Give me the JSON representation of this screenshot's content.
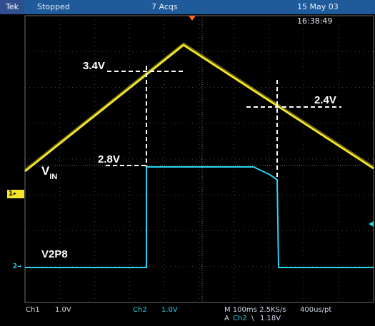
{
  "header": {
    "brand": "Tek",
    "run_state": "Stopped",
    "acquisitions": "7 Acqs",
    "timestamp": "15 May 03 16:38:49"
  },
  "channel_markers": {
    "ch1": "1",
    "ch2": "2"
  },
  "annotations": {
    "top_level": "3.4V",
    "mid_level": "2.4V",
    "output_level": "2.8V",
    "input_label_main": "V",
    "input_label_sub": "IN",
    "output_label": "V2P8"
  },
  "status_bar": {
    "ch1_label": "Ch1",
    "ch1_scale": "1.0V",
    "ch2_label": "Ch2",
    "ch2_scale": "1.0V",
    "timebase": "M 100ms 2.5KS/s",
    "record": "400us/pt",
    "trigger_prefix": "A",
    "trigger_source": "Ch2",
    "trigger_slope_symbol": "\\",
    "trigger_level": "1.18V"
  },
  "colors": {
    "ch1": "#f5e62b",
    "ch2": "#27d3f0",
    "grid": "#6e6e6e",
    "trigger_marker": "#ff6a1a"
  }
}
